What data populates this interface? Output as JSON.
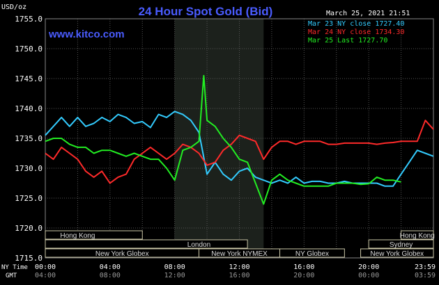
{
  "header": {
    "title": "24 Hour Spot Gold (Bid)",
    "timestamp": "March 25, 2021 21:51",
    "units": "USD/oz",
    "website": "www.kitco.com"
  },
  "legend": [
    {
      "label": "Mar 23 NY close 1727.40",
      "color": "#33ccff"
    },
    {
      "label": "Mar 24 NY close 1734.30",
      "color": "#ff2a2a"
    },
    {
      "label": "Mar 25 Last 1727.70",
      "color": "#22ee22"
    }
  ],
  "axes": {
    "row_label_ny": "NY Time",
    "row_label_gmt": "GMT",
    "ny_ticks": [
      "00:00",
      "04:00",
      "08:00",
      "12:00",
      "16:00",
      "20:00",
      "23:59"
    ],
    "gmt_ticks": [
      "04:00",
      "08:00",
      "12:00",
      "16:00",
      "20:00",
      "00:00",
      "03:59"
    ]
  },
  "market_sessions": [
    {
      "name": "Hong Kong",
      "start": 0,
      "end": 6
    },
    {
      "name": "Hong Kong",
      "start": 22,
      "end": 24
    },
    {
      "name": "London",
      "start": 0,
      "end": 12.5
    },
    {
      "name": "Sydney",
      "start": 20,
      "end": 24
    },
    {
      "name": "New York Globex",
      "start": 0,
      "end": 9.5
    },
    {
      "name": "New York NYMEX",
      "start": 9.5,
      "end": 14.5
    },
    {
      "name": "NY Globex",
      "start": 14.5,
      "end": 18.5
    },
    {
      "name": "New York Globex",
      "start": 19.5,
      "end": 24
    }
  ],
  "chart_data": {
    "type": "line",
    "title": "24 Hour Spot Gold (Bid)",
    "ylabel": "USD/oz",
    "xlabel": "NY Time",
    "ylim": [
      1715,
      1755
    ],
    "xlim": [
      0,
      24
    ],
    "yticks": [
      "1715.0",
      "1720.0",
      "1725.0",
      "1730.0",
      "1735.0",
      "1740.0",
      "1745.0",
      "1750.0",
      "1755.0"
    ],
    "grid": true,
    "legend_position": "top-right",
    "highlight_range": [
      8.0,
      13.5
    ],
    "series": [
      {
        "name": "Mar 23 NY close 1727.40",
        "color": "#33ccff",
        "points": [
          [
            0,
            1735.5
          ],
          [
            0.5,
            1737
          ],
          [
            1,
            1738.5
          ],
          [
            1.5,
            1737
          ],
          [
            2,
            1738.5
          ],
          [
            2.5,
            1737
          ],
          [
            3,
            1737.5
          ],
          [
            3.5,
            1738.5
          ],
          [
            4,
            1737.8
          ],
          [
            4.5,
            1739
          ],
          [
            5,
            1738.5
          ],
          [
            5.5,
            1737.5
          ],
          [
            6,
            1737.8
          ],
          [
            6.5,
            1736.8
          ],
          [
            7,
            1739
          ],
          [
            7.5,
            1738.5
          ],
          [
            8,
            1739.5
          ],
          [
            8.5,
            1739
          ],
          [
            9,
            1738
          ],
          [
            9.5,
            1736
          ],
          [
            10,
            1729
          ],
          [
            10.5,
            1731
          ],
          [
            11,
            1729
          ],
          [
            11.5,
            1728
          ],
          [
            12,
            1729.5
          ],
          [
            12.5,
            1730
          ],
          [
            13,
            1728.5
          ],
          [
            13.5,
            1728
          ],
          [
            14,
            1727.5
          ],
          [
            14.5,
            1728
          ],
          [
            15,
            1727.5
          ],
          [
            15.5,
            1728.5
          ],
          [
            16,
            1727.5
          ],
          [
            16.5,
            1727.8
          ],
          [
            17,
            1727.8
          ],
          [
            17.5,
            1727.5
          ],
          [
            18,
            1727.5
          ],
          [
            18.5,
            1727.8
          ],
          [
            19,
            1727.5
          ],
          [
            19.5,
            1727.5
          ],
          [
            20,
            1727.5
          ],
          [
            20.5,
            1727.5
          ],
          [
            21,
            1727
          ],
          [
            21.5,
            1727
          ],
          [
            22,
            1729
          ],
          [
            22.5,
            1731
          ],
          [
            23,
            1733
          ],
          [
            23.5,
            1732.5
          ],
          [
            24,
            1732
          ]
        ]
      },
      {
        "name": "Mar 24 NY close 1734.30",
        "color": "#ff2a2a",
        "points": [
          [
            0,
            1732.5
          ],
          [
            0.5,
            1731.5
          ],
          [
            1,
            1733.5
          ],
          [
            1.5,
            1732.5
          ],
          [
            2,
            1731.5
          ],
          [
            2.5,
            1729.5
          ],
          [
            3,
            1728.5
          ],
          [
            3.5,
            1729.5
          ],
          [
            4,
            1727.5
          ],
          [
            4.5,
            1728.5
          ],
          [
            5,
            1729
          ],
          [
            5.5,
            1731.5
          ],
          [
            6,
            1732.5
          ],
          [
            6.5,
            1733.5
          ],
          [
            7,
            1732.5
          ],
          [
            7.5,
            1731.5
          ],
          [
            8,
            1732.5
          ],
          [
            8.5,
            1734
          ],
          [
            9,
            1733.5
          ],
          [
            9.5,
            1732.5
          ],
          [
            10,
            1730.5
          ],
          [
            10.5,
            1731
          ],
          [
            11,
            1733
          ],
          [
            11.5,
            1734
          ],
          [
            12,
            1735.5
          ],
          [
            12.5,
            1735
          ],
          [
            13,
            1734.5
          ],
          [
            13.5,
            1731.5
          ],
          [
            14,
            1733.5
          ],
          [
            14.5,
            1734.5
          ],
          [
            15,
            1734.5
          ],
          [
            15.5,
            1734
          ],
          [
            16,
            1734.5
          ],
          [
            16.5,
            1734.5
          ],
          [
            17,
            1734.5
          ],
          [
            17.5,
            1734
          ],
          [
            18,
            1734
          ],
          [
            18.5,
            1734.2
          ],
          [
            19,
            1734.2
          ],
          [
            19.5,
            1734.2
          ],
          [
            20,
            1734.2
          ],
          [
            20.5,
            1734
          ],
          [
            21,
            1734.2
          ],
          [
            21.5,
            1734.3
          ],
          [
            22,
            1734.5
          ],
          [
            22.5,
            1734.5
          ],
          [
            23,
            1734.5
          ],
          [
            23.5,
            1738
          ],
          [
            24,
            1736.5
          ]
        ]
      },
      {
        "name": "Mar 25 Last 1727.70",
        "color": "#22ee22",
        "points": [
          [
            0,
            1734.5
          ],
          [
            0.5,
            1735
          ],
          [
            1,
            1735
          ],
          [
            1.5,
            1734
          ],
          [
            2,
            1733.5
          ],
          [
            2.5,
            1733.5
          ],
          [
            3,
            1732.5
          ],
          [
            3.5,
            1733
          ],
          [
            4,
            1733
          ],
          [
            4.5,
            1732.5
          ],
          [
            5,
            1732
          ],
          [
            5.5,
            1732.5
          ],
          [
            6,
            1732
          ],
          [
            6.5,
            1731.5
          ],
          [
            7,
            1731.5
          ],
          [
            7.5,
            1730
          ],
          [
            8,
            1728
          ],
          [
            8.5,
            1733
          ],
          [
            9,
            1733.5
          ],
          [
            9.5,
            1734.5
          ],
          [
            9.8,
            1745.5
          ],
          [
            10,
            1738
          ],
          [
            10.5,
            1737
          ],
          [
            11,
            1735
          ],
          [
            11.5,
            1733.5
          ],
          [
            12,
            1731.5
          ],
          [
            12.5,
            1731
          ],
          [
            13,
            1727.5
          ],
          [
            13.5,
            1724
          ],
          [
            14,
            1728
          ],
          [
            14.5,
            1729
          ],
          [
            15,
            1728
          ],
          [
            15.5,
            1727.5
          ],
          [
            16,
            1727
          ],
          [
            16.5,
            1727
          ],
          [
            17,
            1727
          ],
          [
            17.5,
            1727
          ],
          [
            18,
            1727.5
          ],
          [
            18.5,
            1727.5
          ],
          [
            19,
            1727.5
          ],
          [
            19.5,
            1727.3
          ],
          [
            20,
            1727.4
          ],
          [
            20.5,
            1728.5
          ],
          [
            21,
            1728
          ],
          [
            21.5,
            1728
          ],
          [
            22,
            1727.7
          ]
        ]
      }
    ]
  }
}
